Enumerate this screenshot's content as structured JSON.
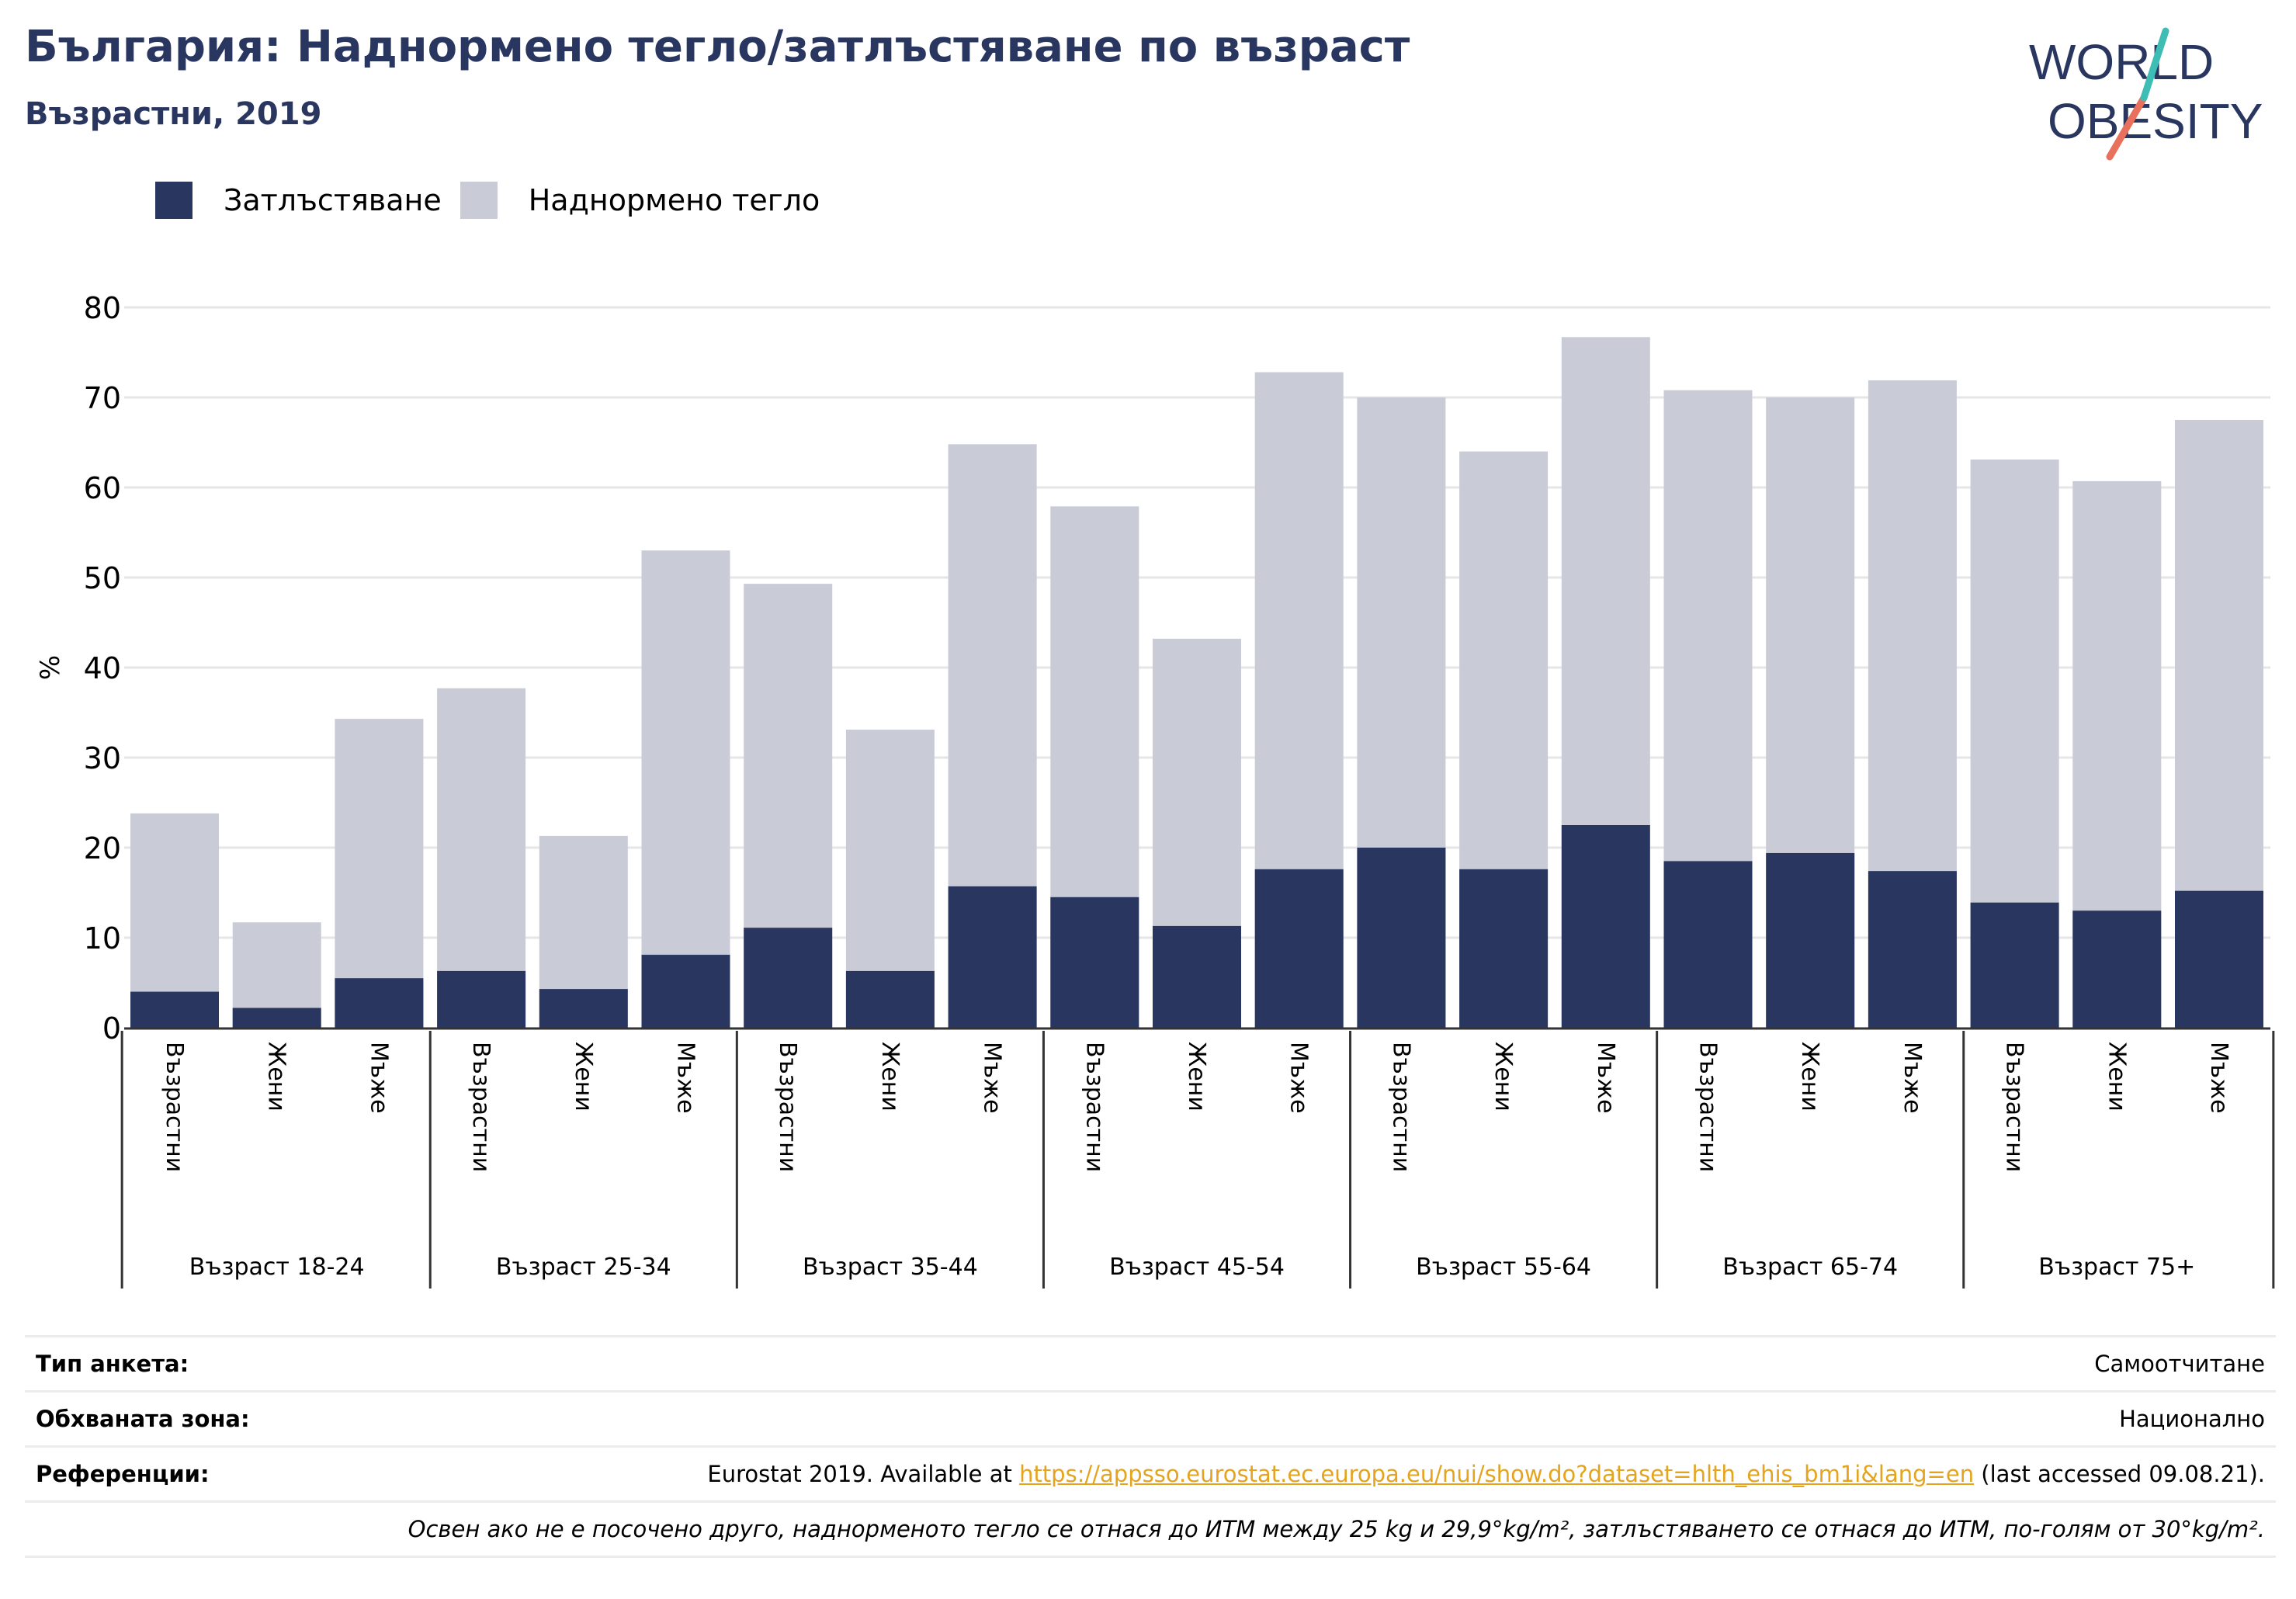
{
  "header": {
    "title": "България: Наднормено тегло/затлъстяване по възраст",
    "subtitle": "Възрастни, 2019"
  },
  "logo": {
    "line1": "WORLD",
    "line2": "OBESITY"
  },
  "legend": [
    {
      "label": "Затлъстяване",
      "color": "#29365f"
    },
    {
      "label": "Наднормено тегло",
      "color": "#c9cbd6"
    }
  ],
  "chart_data": {
    "type": "bar",
    "stacked": false,
    "overlay": true,
    "ylabel": "%",
    "ylim": [
      0,
      80
    ],
    "yticks": [
      0,
      10,
      20,
      30,
      40,
      50,
      60,
      70,
      80
    ],
    "grid": true,
    "legend_position": "top-left",
    "groups": [
      "Възраст 18-24",
      "Възраст 25-34",
      "Възраст 35-44",
      "Възраст 45-54",
      "Възраст 55-64",
      "Възраст 65-74",
      "Възраст 75+"
    ],
    "subcategories": [
      "Възрастни",
      "Жени",
      "Мъже"
    ],
    "series": [
      {
        "name": "Наднормено тегло",
        "color": "#c9cbd6",
        "values": [
          23.8,
          11.7,
          34.3,
          37.7,
          21.3,
          53.0,
          49.3,
          33.1,
          64.8,
          57.9,
          43.2,
          72.8,
          70.0,
          64.0,
          76.7,
          70.8,
          70.0,
          71.9,
          63.1,
          60.7,
          67.5
        ]
      },
      {
        "name": "Затлъстяване",
        "color": "#29365f",
        "values": [
          4.0,
          2.2,
          5.5,
          6.3,
          4.3,
          8.1,
          11.1,
          6.3,
          15.7,
          14.5,
          11.3,
          17.6,
          20.0,
          17.6,
          22.5,
          18.5,
          19.4,
          17.4,
          13.9,
          13.0,
          15.2
        ]
      }
    ]
  },
  "footer": {
    "rows": [
      {
        "label": "Тип анкета:",
        "value": "Самоотчитане"
      },
      {
        "label": "Обхваната зона:",
        "value": "Национално"
      }
    ],
    "references": {
      "label": "Референции:",
      "prefix": "Eurostat 2019. Available at ",
      "link": "https://appsso.eurostat.ec.europa.eu/nui/show.do?dataset=hlth_ehis_bm1i&lang=en",
      "suffix": " (last accessed 09.08.21)."
    },
    "note": "Освен ако не е посочено друго, наднорменото тегло се отнася до ИТМ между 25 kg и 29,9°kg/m², затлъстяването се отнася до ИТМ, по-голям от 30°kg/m²."
  }
}
